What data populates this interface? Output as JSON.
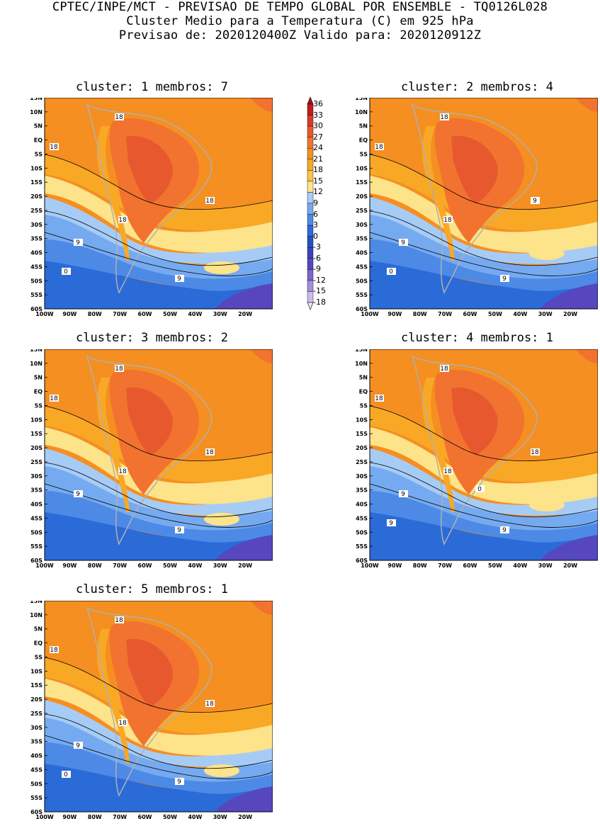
{
  "header": {
    "line1": "CPTEC/INPE/MCT - PREVISAO DE TEMPO GLOBAL POR ENSEMBLE - TQ0126L028",
    "line2": "Cluster Medio para a Temperatura (C) em 925 hPa",
    "line3": "Previsao de: 2020120400Z   Valido para: 2020120912Z"
  },
  "panels": [
    {
      "title": "cluster: 1  membros: 7",
      "contour_labels": [
        "18",
        "18",
        "18",
        "18",
        "9",
        "9",
        "0"
      ]
    },
    {
      "title": "cluster: 2  membros: 4",
      "contour_labels": [
        "18",
        "18",
        "18",
        "9",
        "9",
        "9",
        "0"
      ]
    },
    {
      "title": "cluster: 3  membros: 2",
      "contour_labels": [
        "18",
        "18",
        "18",
        "18",
        "9",
        "9"
      ]
    },
    {
      "title": "cluster: 4  membros: 1",
      "contour_labels": [
        "18",
        "18",
        "18",
        "18",
        "9",
        "9",
        "9",
        "0"
      ]
    },
    {
      "title": "cluster: 5  membros: 1",
      "contour_labels": [
        "18",
        "18",
        "18",
        "18",
        "9",
        "9",
        "0"
      ]
    }
  ],
  "lat_labels": [
    "15N",
    "10N",
    "5N",
    "EQ",
    "5S",
    "10S",
    "15S",
    "20S",
    "25S",
    "30S",
    "35S",
    "40S",
    "45S",
    "50S",
    "55S",
    "60S"
  ],
  "lon_labels": [
    "100W",
    "90W",
    "80W",
    "70W",
    "60W",
    "50W",
    "40W",
    "30W",
    "20W"
  ],
  "colorbar": {
    "levels": [
      "36",
      "33",
      "30",
      "27",
      "24",
      "21",
      "18",
      "15",
      "12",
      "9",
      "6",
      "3",
      "0",
      "-3",
      "-6",
      "-9",
      "-12",
      "-15",
      "-18"
    ],
    "colors": [
      "#a50f15",
      "#c21c1f",
      "#d73a2b",
      "#e8582e",
      "#f1732f",
      "#f58f21",
      "#f9a826",
      "#fbc347",
      "#fde38a",
      "#a6ccf6",
      "#76aaf0",
      "#4c8ae6",
      "#2b6bd8",
      "#2450c2",
      "#3a44b8",
      "#5647bf",
      "#7b66cc",
      "#a38fdc",
      "#cbbaea",
      "#ece5f7"
    ]
  },
  "colors": {
    "hot": "#e8582e",
    "warm": "#f1732f",
    "orange": "#f58f21",
    "lightorange": "#f9a826",
    "yellow": "#fde38a",
    "lightblue": "#a6ccf6",
    "blue": "#76aaf0",
    "midblue": "#4c8ae6",
    "deepblue": "#2b6bd8",
    "violet": "#5647bf",
    "land": "#b0b0b0"
  }
}
